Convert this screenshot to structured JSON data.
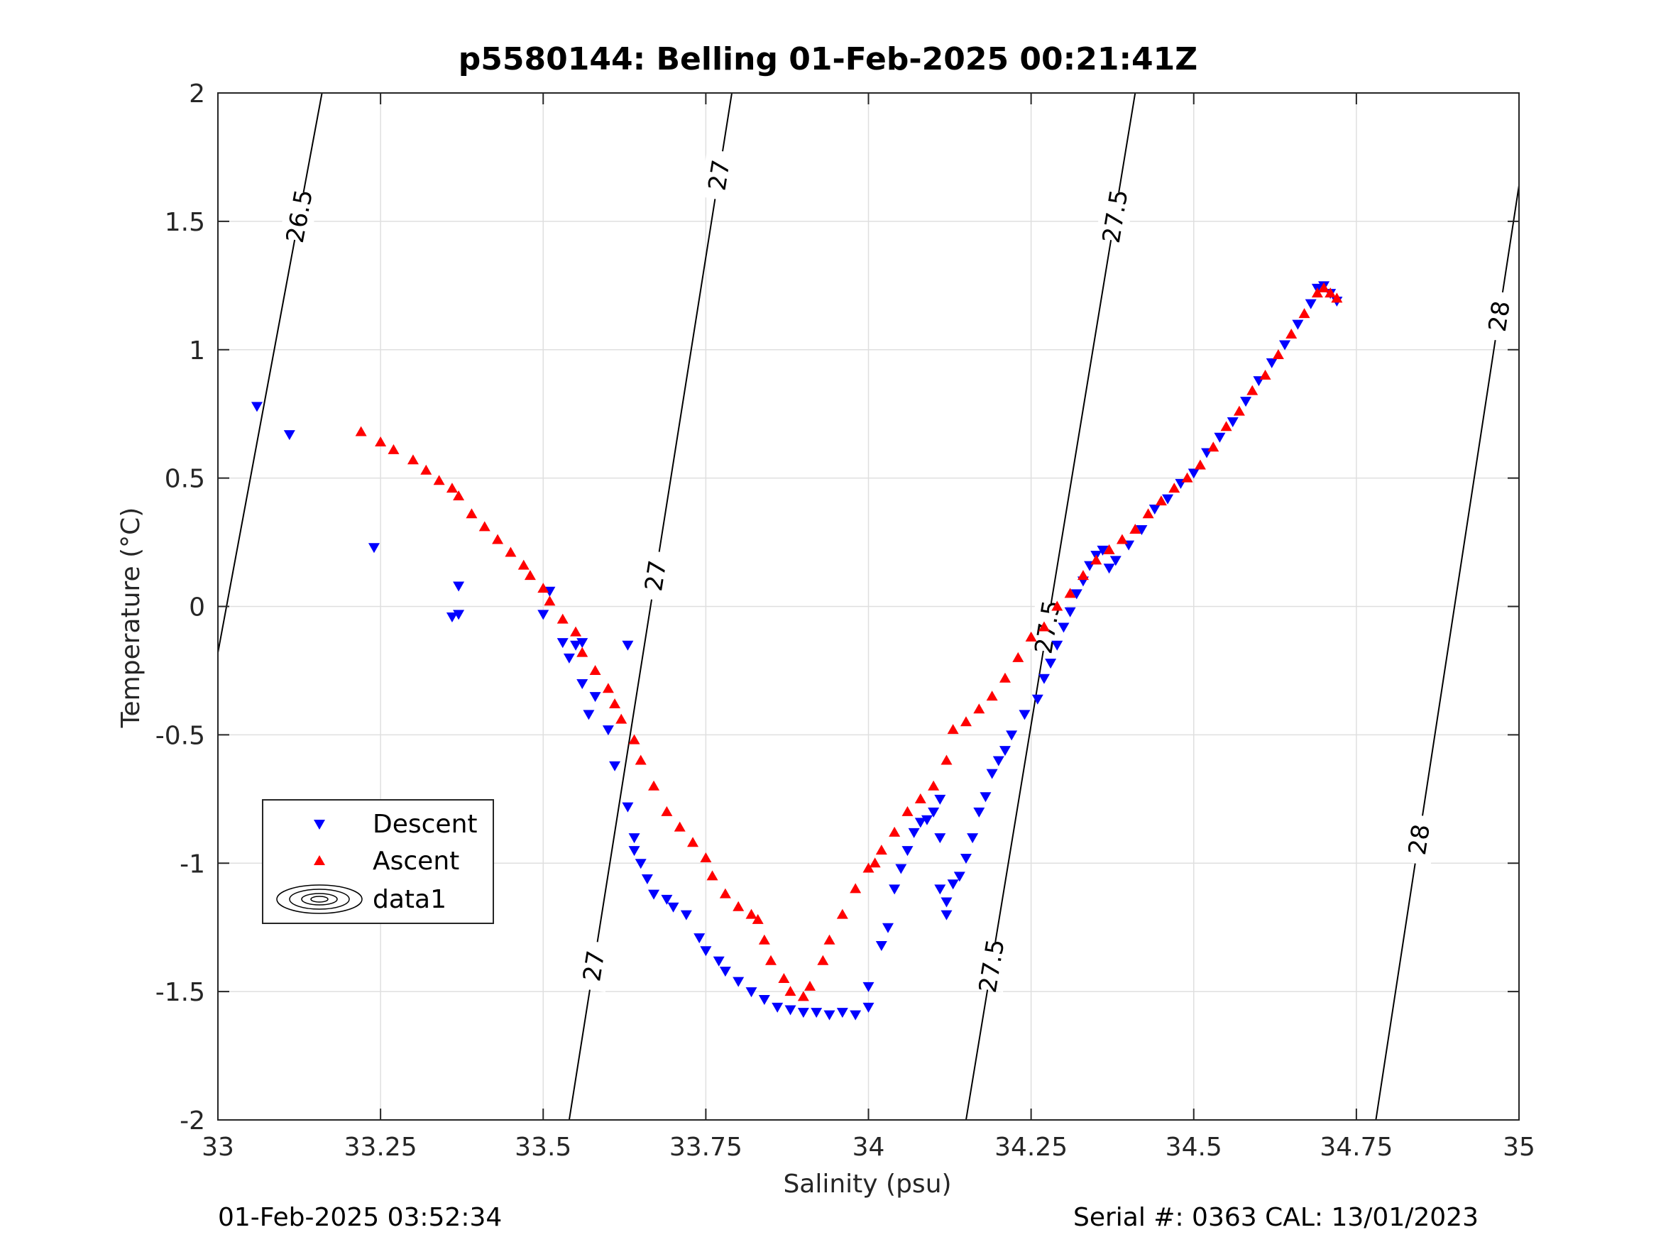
{
  "header": {
    "title": "p5580144: Belling 01-Feb-2025 00:21:41Z"
  },
  "footer": {
    "left": "01-Feb-2025 03:52:34",
    "right": "Serial #: 0363  CAL: 13/01/2023"
  },
  "chart_data": {
    "type": "scatter",
    "title": "p5580144: Belling 01-Feb-2025 00:21:41Z",
    "xlabel": "Salinity (psu)",
    "ylabel": "Temperature (°C)",
    "xlim": [
      33,
      35
    ],
    "ylim": [
      -2,
      2
    ],
    "xticks": [
      33,
      33.25,
      33.5,
      33.75,
      34,
      34.25,
      34.5,
      34.75,
      35
    ],
    "xtick_labels": [
      "33",
      "33.25",
      "33.5",
      "33.75",
      "34",
      "34.25",
      "34.5",
      "34.75",
      "35"
    ],
    "yticks": [
      -2,
      -1.5,
      -1,
      -0.5,
      0,
      0.5,
      1,
      1.5,
      2
    ],
    "ytick_labels": [
      "-2",
      "-1.5",
      "-1",
      "-0.5",
      "0",
      "0.5",
      "1",
      "1.5",
      "2"
    ],
    "grid": true,
    "legend_position": "lower-left",
    "colors": {
      "descent": "#0000ff",
      "ascent": "#ff0000",
      "contour": "#000000"
    },
    "series": [
      {
        "name": "Descent",
        "marker": "triangle-down",
        "points": [
          [
            33.06,
            0.78
          ],
          [
            33.11,
            0.67
          ],
          [
            33.24,
            0.23
          ],
          [
            33.37,
            0.08
          ],
          [
            33.36,
            -0.04
          ],
          [
            33.37,
            -0.03
          ],
          [
            33.51,
            0.06
          ],
          [
            33.5,
            -0.03
          ],
          [
            33.53,
            -0.14
          ],
          [
            33.55,
            -0.15
          ],
          [
            33.56,
            -0.14
          ],
          [
            33.54,
            -0.2
          ],
          [
            33.56,
            -0.3
          ],
          [
            33.58,
            -0.35
          ],
          [
            33.57,
            -0.42
          ],
          [
            33.6,
            -0.48
          ],
          [
            33.63,
            -0.15
          ],
          [
            33.61,
            -0.62
          ],
          [
            33.63,
            -0.78
          ],
          [
            33.64,
            -0.9
          ],
          [
            33.64,
            -0.95
          ],
          [
            33.65,
            -1.0
          ],
          [
            33.66,
            -1.06
          ],
          [
            33.67,
            -1.12
          ],
          [
            33.69,
            -1.14
          ],
          [
            33.7,
            -1.17
          ],
          [
            33.72,
            -1.2
          ],
          [
            33.74,
            -1.29
          ],
          [
            33.75,
            -1.34
          ],
          [
            33.77,
            -1.38
          ],
          [
            33.78,
            -1.42
          ],
          [
            33.8,
            -1.46
          ],
          [
            33.82,
            -1.5
          ],
          [
            33.84,
            -1.53
          ],
          [
            33.86,
            -1.56
          ],
          [
            33.88,
            -1.57
          ],
          [
            33.9,
            -1.58
          ],
          [
            33.92,
            -1.58
          ],
          [
            33.94,
            -1.59
          ],
          [
            33.96,
            -1.58
          ],
          [
            33.98,
            -1.59
          ],
          [
            34.0,
            -1.56
          ],
          [
            34.0,
            -1.48
          ],
          [
            34.02,
            -1.32
          ],
          [
            34.03,
            -1.25
          ],
          [
            34.04,
            -1.1
          ],
          [
            34.05,
            -1.02
          ],
          [
            34.06,
            -0.95
          ],
          [
            34.07,
            -0.88
          ],
          [
            34.08,
            -0.84
          ],
          [
            34.09,
            -0.83
          ],
          [
            34.1,
            -0.8
          ],
          [
            34.11,
            -0.75
          ],
          [
            34.11,
            -0.9
          ],
          [
            34.11,
            -1.1
          ],
          [
            34.12,
            -1.2
          ],
          [
            34.12,
            -1.15
          ],
          [
            34.13,
            -1.08
          ],
          [
            34.14,
            -1.05
          ],
          [
            34.15,
            -0.98
          ],
          [
            34.16,
            -0.9
          ],
          [
            34.17,
            -0.8
          ],
          [
            34.18,
            -0.74
          ],
          [
            34.19,
            -0.65
          ],
          [
            34.2,
            -0.6
          ],
          [
            34.21,
            -0.56
          ],
          [
            34.22,
            -0.5
          ],
          [
            34.24,
            -0.42
          ],
          [
            34.26,
            -0.36
          ],
          [
            34.27,
            -0.28
          ],
          [
            34.28,
            -0.22
          ],
          [
            34.29,
            -0.15
          ],
          [
            34.3,
            -0.08
          ],
          [
            34.31,
            -0.02
          ],
          [
            34.32,
            0.05
          ],
          [
            34.33,
            0.1
          ],
          [
            34.34,
            0.16
          ],
          [
            34.35,
            0.2
          ],
          [
            34.36,
            0.22
          ],
          [
            34.37,
            0.15
          ],
          [
            34.38,
            0.18
          ],
          [
            34.4,
            0.24
          ],
          [
            34.42,
            0.3
          ],
          [
            34.44,
            0.38
          ],
          [
            34.46,
            0.42
          ],
          [
            34.48,
            0.48
          ],
          [
            34.5,
            0.52
          ],
          [
            34.52,
            0.6
          ],
          [
            34.54,
            0.66
          ],
          [
            34.56,
            0.72
          ],
          [
            34.58,
            0.8
          ],
          [
            34.6,
            0.88
          ],
          [
            34.62,
            0.95
          ],
          [
            34.64,
            1.02
          ],
          [
            34.66,
            1.1
          ],
          [
            34.68,
            1.18
          ],
          [
            34.69,
            1.24
          ],
          [
            34.7,
            1.25
          ],
          [
            34.71,
            1.22
          ],
          [
            34.72,
            1.19
          ]
        ]
      },
      {
        "name": "Ascent",
        "marker": "triangle-up",
        "points": [
          [
            33.22,
            0.68
          ],
          [
            33.25,
            0.64
          ],
          [
            33.27,
            0.61
          ],
          [
            33.3,
            0.57
          ],
          [
            33.32,
            0.53
          ],
          [
            33.34,
            0.49
          ],
          [
            33.36,
            0.46
          ],
          [
            33.37,
            0.43
          ],
          [
            33.39,
            0.36
          ],
          [
            33.41,
            0.31
          ],
          [
            33.43,
            0.26
          ],
          [
            33.45,
            0.21
          ],
          [
            33.47,
            0.16
          ],
          [
            33.48,
            0.12
          ],
          [
            33.5,
            0.07
          ],
          [
            33.51,
            0.02
          ],
          [
            33.53,
            -0.05
          ],
          [
            33.55,
            -0.1
          ],
          [
            33.56,
            -0.18
          ],
          [
            33.58,
            -0.25
          ],
          [
            33.6,
            -0.32
          ],
          [
            33.61,
            -0.38
          ],
          [
            33.62,
            -0.44
          ],
          [
            33.64,
            -0.52
          ],
          [
            33.65,
            -0.6
          ],
          [
            33.67,
            -0.7
          ],
          [
            33.69,
            -0.8
          ],
          [
            33.71,
            -0.86
          ],
          [
            33.73,
            -0.92
          ],
          [
            33.75,
            -0.98
          ],
          [
            33.76,
            -1.05
          ],
          [
            33.78,
            -1.12
          ],
          [
            33.8,
            -1.17
          ],
          [
            33.82,
            -1.2
          ],
          [
            33.83,
            -1.22
          ],
          [
            33.84,
            -1.3
          ],
          [
            33.85,
            -1.38
          ],
          [
            33.87,
            -1.45
          ],
          [
            33.88,
            -1.5
          ],
          [
            33.9,
            -1.52
          ],
          [
            33.91,
            -1.48
          ],
          [
            33.93,
            -1.38
          ],
          [
            33.94,
            -1.3
          ],
          [
            33.96,
            -1.2
          ],
          [
            33.98,
            -1.1
          ],
          [
            34.0,
            -1.02
          ],
          [
            34.01,
            -1.0
          ],
          [
            34.02,
            -0.95
          ],
          [
            34.04,
            -0.88
          ],
          [
            34.06,
            -0.8
          ],
          [
            34.08,
            -0.75
          ],
          [
            34.1,
            -0.7
          ],
          [
            34.12,
            -0.6
          ],
          [
            34.13,
            -0.48
          ],
          [
            34.15,
            -0.45
          ],
          [
            34.17,
            -0.4
          ],
          [
            34.19,
            -0.35
          ],
          [
            34.21,
            -0.28
          ],
          [
            34.23,
            -0.2
          ],
          [
            34.25,
            -0.12
          ],
          [
            34.27,
            -0.08
          ],
          [
            34.29,
            0.0
          ],
          [
            34.31,
            0.05
          ],
          [
            34.33,
            0.12
          ],
          [
            34.35,
            0.18
          ],
          [
            34.37,
            0.22
          ],
          [
            34.39,
            0.26
          ],
          [
            34.41,
            0.3
          ],
          [
            34.43,
            0.36
          ],
          [
            34.45,
            0.41
          ],
          [
            34.47,
            0.46
          ],
          [
            34.49,
            0.5
          ],
          [
            34.51,
            0.55
          ],
          [
            34.53,
            0.62
          ],
          [
            34.55,
            0.7
          ],
          [
            34.57,
            0.76
          ],
          [
            34.59,
            0.84
          ],
          [
            34.61,
            0.9
          ],
          [
            34.63,
            0.98
          ],
          [
            34.65,
            1.06
          ],
          [
            34.67,
            1.14
          ],
          [
            34.69,
            1.22
          ],
          [
            34.7,
            1.24
          ],
          [
            34.71,
            1.22
          ],
          [
            34.72,
            1.2
          ]
        ]
      },
      {
        "name": "data1",
        "type": "contour",
        "levels": [
          26.5,
          27,
          27.5,
          28
        ],
        "contour_label_text": [
          "26.5",
          "27",
          "27",
          "27",
          "27.5",
          "27.5",
          "27.5",
          "28",
          "28"
        ],
        "lines": [
          {
            "level": "26.5",
            "points": [
              [
                33.0,
                -0.18
              ],
              [
                33.16,
                2.0
              ]
            ]
          },
          {
            "level": "27",
            "points": [
              [
                33.54,
                -2.0
              ],
              [
                33.79,
                2.0
              ]
            ]
          },
          {
            "level": "27.5",
            "points": [
              [
                34.15,
                -2.0
              ],
              [
                34.41,
                2.0
              ]
            ]
          },
          {
            "level": "28",
            "points": [
              [
                34.78,
                -2.0
              ],
              [
                35.0,
                1.64
              ]
            ]
          }
        ]
      }
    ]
  }
}
